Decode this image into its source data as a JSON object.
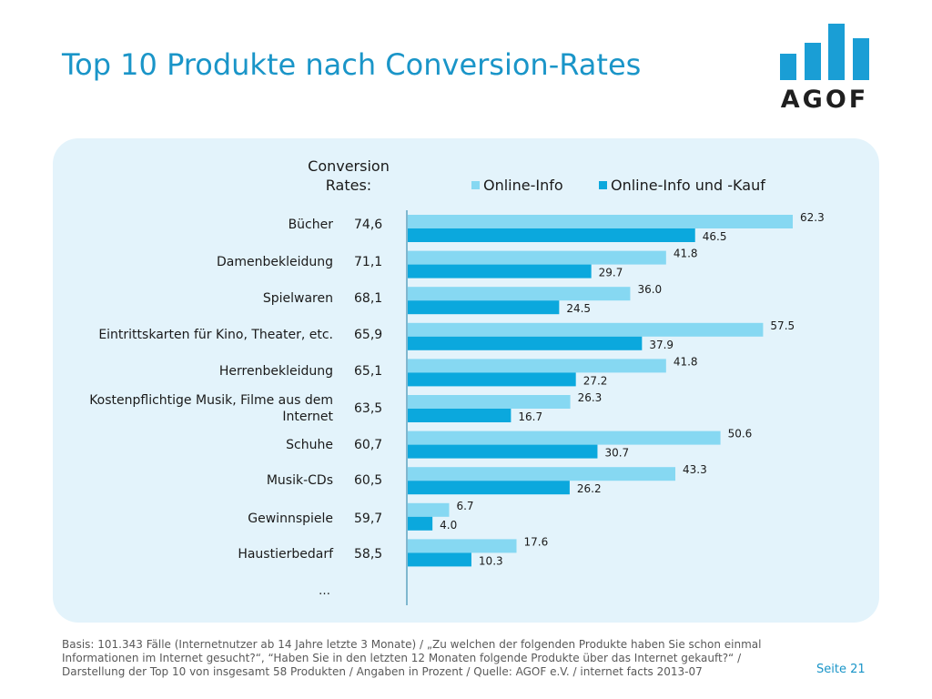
{
  "page": {
    "title": "Top 10 Produkte nach Conversion-Rates",
    "page_number": "Seite 21",
    "footnote": "Basis: 101.343 Fälle (Internetnutzer ab 14 Jahre letzte 3 Monate) / „Zu welchen der folgenden Produkte haben Sie schon einmal Informationen im Internet gesucht?“, “Haben Sie in den letzten 12 Monaten folgende Produkte über das Internet gekauft?“ / Darstellung der Top 10 von insgesamt 58 Produkten / Angaben in Prozent / Quelle: AGOF e.V. / internet facts 2013-07",
    "logo_text": "AGOF",
    "cr_header_line1": "Conversion",
    "cr_header_line2": "Rates:",
    "ellipsis": "…"
  },
  "colors": {
    "title": "#1a95c8",
    "panel": "#e3f3fb",
    "series_light": "#86d8f2",
    "series_dark": "#0ba8dd",
    "logo": "#1a9ed5",
    "logo_text": "#1f1f1f"
  },
  "chart_data": {
    "type": "bar",
    "orientation": "horizontal",
    "categories": [
      "Bücher",
      "Damenbekleidung",
      "Spielwaren",
      "Eintrittskarten für Kino, Theater, etc.",
      "Herrenbekleidung",
      "Kostenpflichtige Musik, Filme aus dem Internet",
      "Schuhe",
      "Musik-CDs",
      "Gewinnspiele",
      "Haustierbedarf"
    ],
    "conversion_rates": [
      "74,6",
      "71,1",
      "68,1",
      "65,9",
      "65,1",
      "63,5",
      "60,7",
      "60,5",
      "59,7",
      "58,5"
    ],
    "series": [
      {
        "name": "Online-Info",
        "values": [
          62.3,
          41.8,
          36.0,
          57.5,
          41.8,
          26.3,
          50.6,
          43.3,
          6.7,
          17.6
        ]
      },
      {
        "name": "Online-Info und -Kauf",
        "values": [
          46.5,
          29.7,
          24.5,
          37.9,
          27.2,
          16.7,
          30.7,
          26.2,
          4.0,
          10.3
        ]
      }
    ],
    "value_labels": [
      [
        "62.3",
        "41.8",
        "36.0",
        "57.5",
        "41.8",
        "26.3",
        "50.6",
        "43.3",
        "6.7",
        "17.6"
      ],
      [
        "46.5",
        "29.7",
        "24.5",
        "37.9",
        "27.2",
        "16.7",
        "30.7",
        "26.2",
        "4.0",
        "10.3"
      ]
    ],
    "xlim": [
      0,
      70
    ],
    "grid": false,
    "legend_position": "top"
  }
}
